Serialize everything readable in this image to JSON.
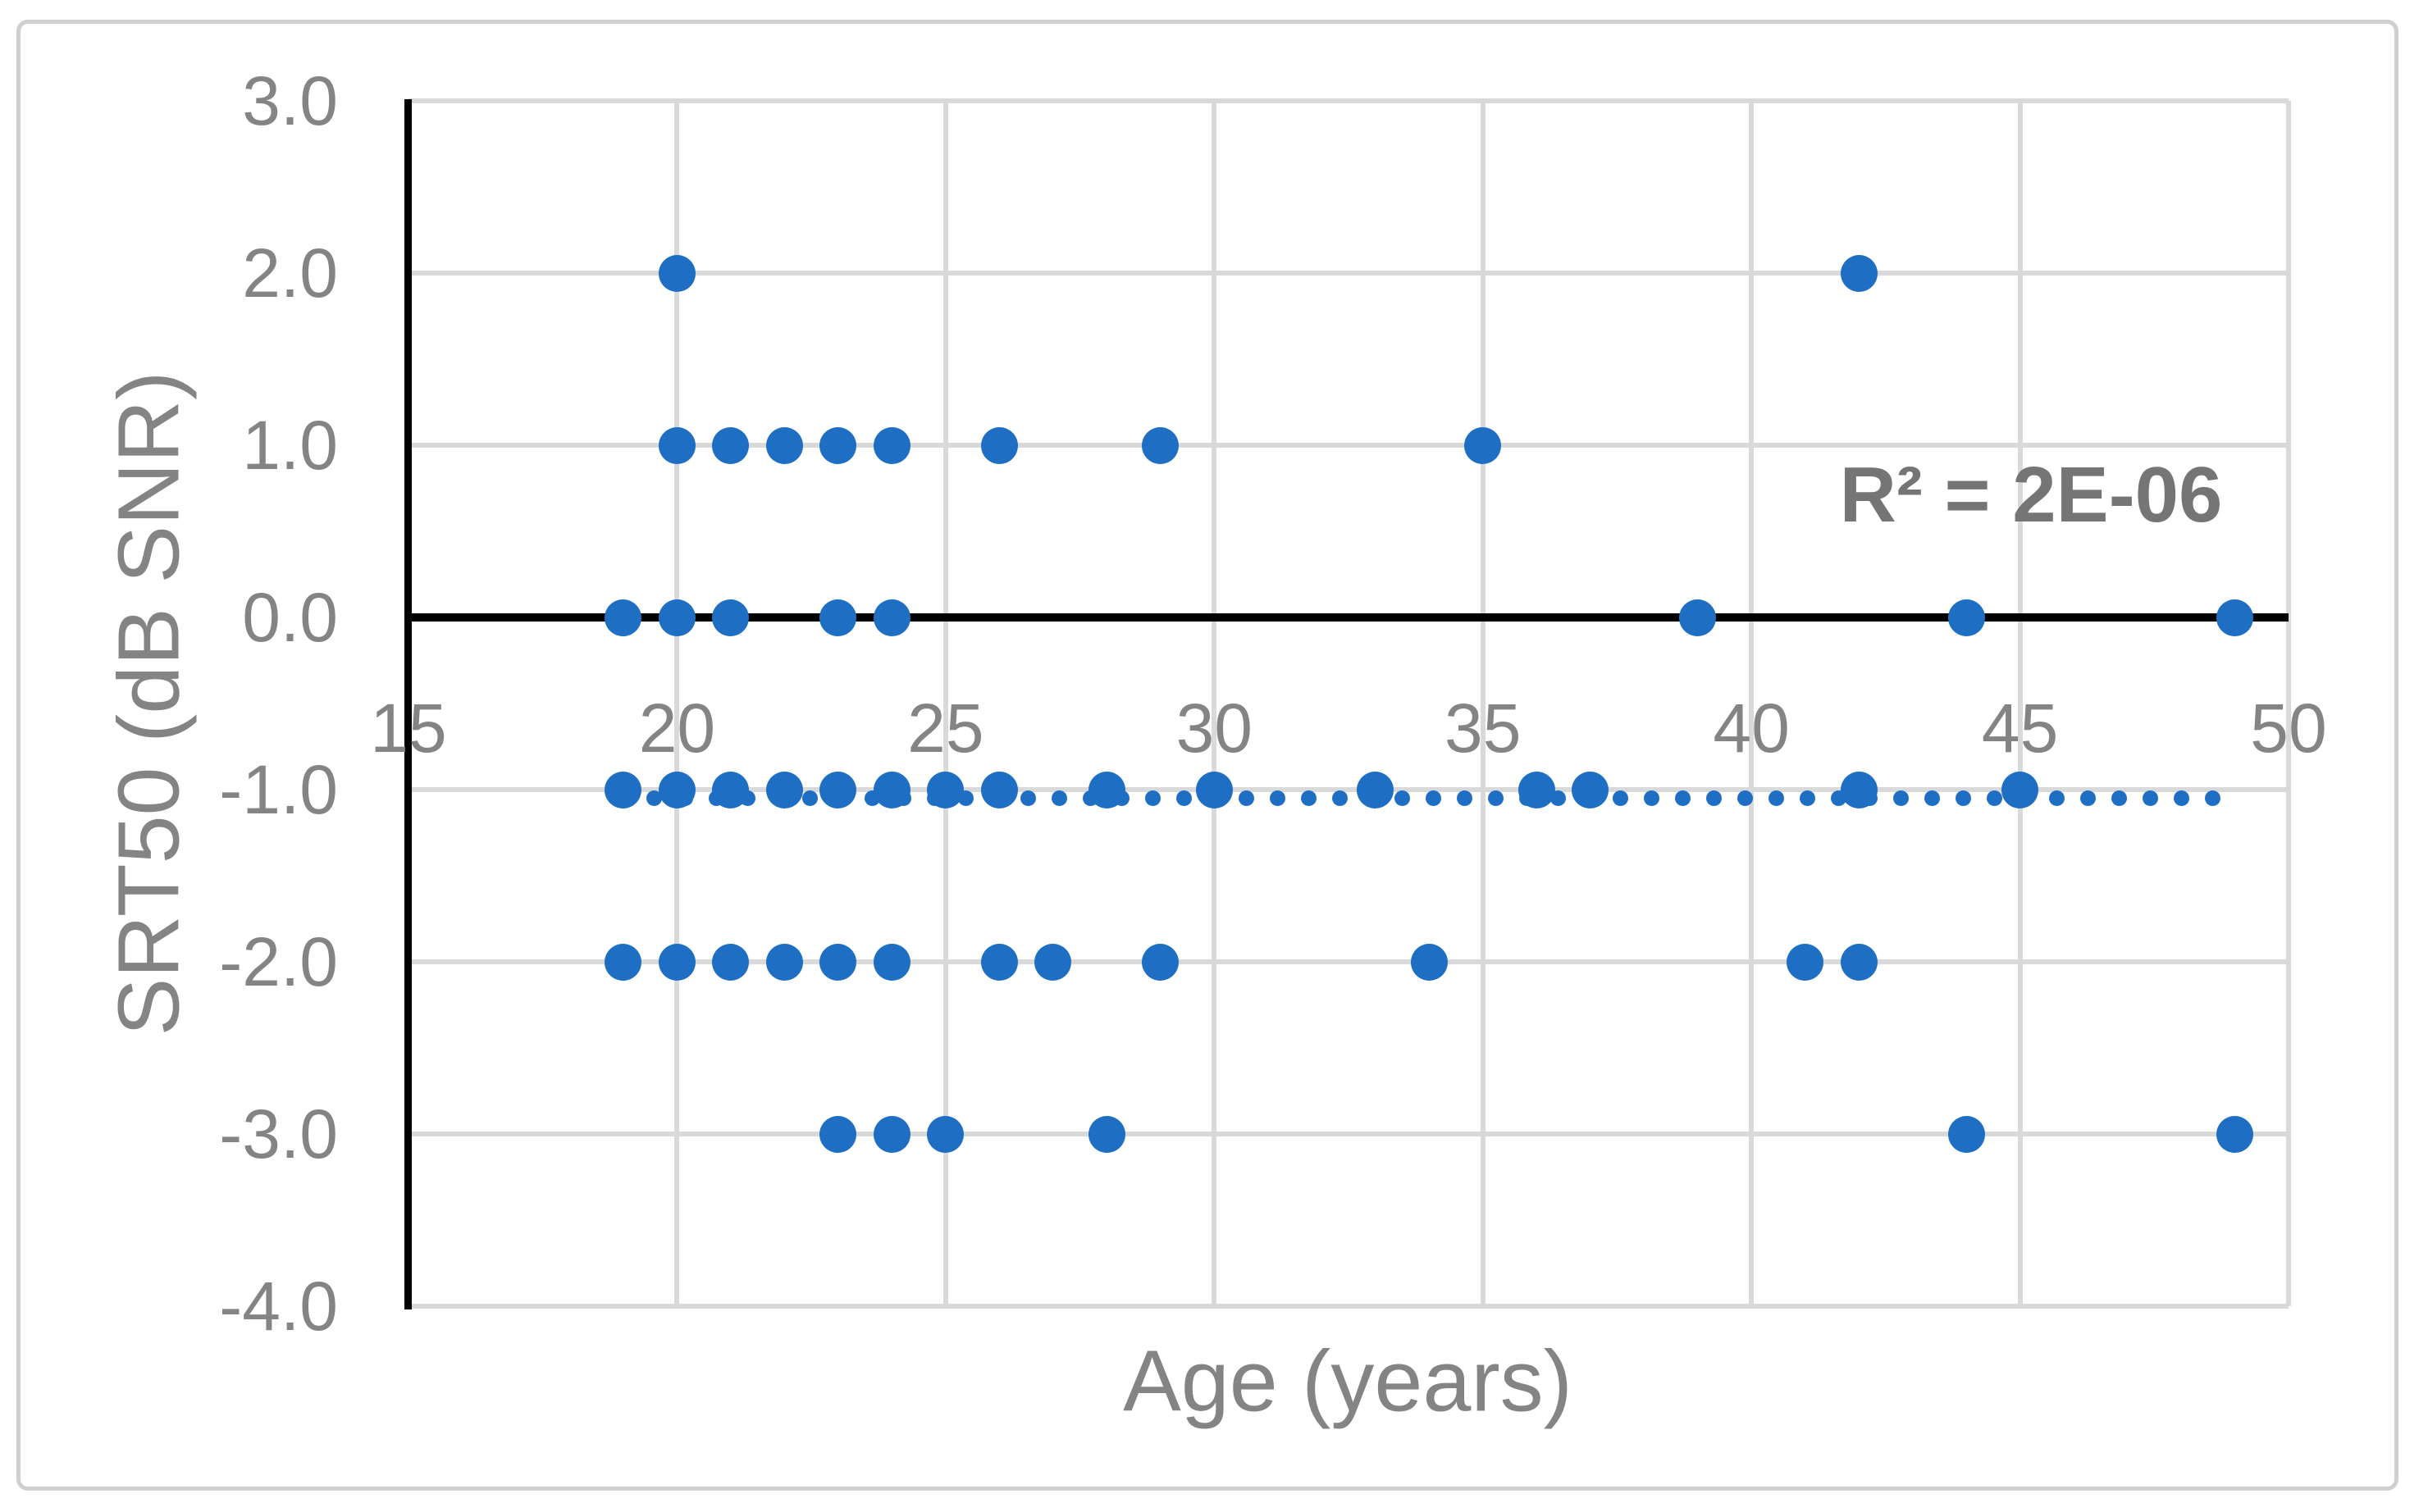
{
  "figure": {
    "kind": "journal-scatter-figure"
  },
  "annotations": {
    "r2_label": "R² = 2E-06"
  },
  "colors": {
    "marker_blue": "#1e6fc4",
    "gridline_gray": "#d9d9d9",
    "axis_black": "#000000",
    "label_gray": "#848484",
    "r2_gray": "#757575",
    "border_gray": "#cfcfcf",
    "background": "#ffffff"
  },
  "chart_data": {
    "type": "scatter",
    "title": "",
    "xlabel": "Age (years)",
    "ylabel": "SRT50 (dB SNR)",
    "xlim": [
      15,
      50
    ],
    "ylim": [
      -4.0,
      3.0
    ],
    "grid": true,
    "axis_crosses_at_y": 0,
    "x_ticks": {
      "values": [
        15,
        20,
        25,
        30,
        35,
        40,
        45,
        50
      ],
      "labels": [
        "15",
        "20",
        "25",
        "30",
        "35",
        "40",
        "45",
        "50"
      ]
    },
    "y_ticks": {
      "values": [
        3,
        2,
        1,
        0,
        -1,
        -2,
        -3,
        -4
      ],
      "labels": [
        "3.0",
        "2.0",
        "1.0",
        "0.0",
        "-1.0",
        "-2.0",
        "-3.0",
        "-4.0"
      ]
    },
    "points_by_srt": [
      {
        "srt": 2.0,
        "ages": [
          20,
          42
        ]
      },
      {
        "srt": 1.0,
        "ages": [
          20,
          21,
          22,
          23,
          24,
          26,
          29,
          35
        ]
      },
      {
        "srt": 0.0,
        "ages": [
          19,
          20,
          21,
          23,
          24,
          39,
          44,
          49
        ]
      },
      {
        "srt": -1.0,
        "ages": [
          19,
          20,
          21,
          22,
          23,
          24,
          25,
          26,
          28,
          30,
          33,
          36,
          37,
          42,
          45
        ]
      },
      {
        "srt": -2.0,
        "ages": [
          19,
          20,
          21,
          22,
          23,
          24,
          26,
          27,
          29,
          34,
          41,
          42
        ]
      },
      {
        "srt": -3.0,
        "ages": [
          23,
          24,
          25,
          28,
          44,
          49
        ]
      }
    ],
    "trendline": {
      "fit": "linear",
      "y_level": -1.05,
      "x_start": 19,
      "x_end": 49,
      "line_style": "dotted",
      "r2_text": "R² = 2E-06",
      "legend": "none"
    }
  }
}
